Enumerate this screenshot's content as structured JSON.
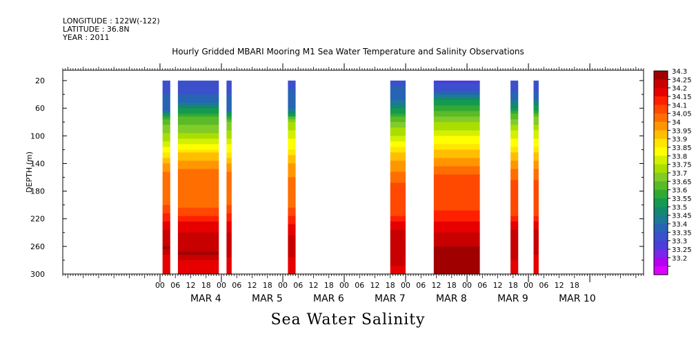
{
  "header": {
    "longitude": "LONGITUDE : 122W(-122)",
    "latitude": "LATITUDE : 36.8N",
    "year": "YEAR : 2011"
  },
  "title": "Hourly Gridded MBARI Mooring M1 Sea Water Temperature and Salinity Observations",
  "xaxis_title": "Sea Water Salinity",
  "chart_data": {
    "type": "heatmap",
    "title": "Hourly Gridded MBARI Mooring M1 Sea Water Temperature and Salinity Observations",
    "xlabel": "",
    "ylabel": "DEPTH (m)",
    "x_unit": "hours since MAR 4 00:00 2011",
    "xlim": [
      -62,
      165
    ],
    "ylim": [
      300,
      5
    ],
    "y_ticks": [
      20,
      60,
      100,
      140,
      180,
      220,
      260,
      300
    ],
    "x_tick_labels": [
      "00",
      "06",
      "12",
      "18",
      "00",
      "06",
      "12",
      "18",
      "00",
      "06",
      "12",
      "18",
      "00",
      "06",
      "12",
      "18",
      "00",
      "06",
      "12",
      "18",
      "00",
      "06",
      "12",
      "18",
      "00",
      "06",
      "12",
      "18"
    ],
    "x_tick_hours": [
      -24,
      -18,
      -12,
      -6,
      0,
      6,
      12,
      18,
      24,
      30,
      36,
      42,
      48,
      54,
      60,
      66,
      72,
      78,
      84,
      90,
      96,
      102,
      108,
      114,
      120,
      126,
      132,
      138
    ],
    "day_labels": [
      {
        "label": "MAR  4",
        "hour": 0
      },
      {
        "label": "MAR  5",
        "hour": 24
      },
      {
        "label": "MAR  6",
        "hour": 48
      },
      {
        "label": "MAR  7",
        "hour": 72
      },
      {
        "label": "MAR  8",
        "hour": 96
      },
      {
        "label": "MAR  9",
        "hour": 120
      },
      {
        "label": "MAR 10",
        "hour": 144
      }
    ],
    "colorbar": {
      "levels": [
        "34.3",
        "34.25",
        "34.2",
        "34.15",
        "34.1",
        "34.05",
        "34",
        "33.95",
        "33.9",
        "33.85",
        "33.8",
        "33.75",
        "33.7",
        "33.65",
        "33.6",
        "33.55",
        "33.5",
        "33.45",
        "33.4",
        "33.35",
        "33.3",
        "33.25",
        "33.2"
      ],
      "colors": [
        "#a00000",
        "#c80000",
        "#e60000",
        "#ff2000",
        "#ff4800",
        "#ff6e00",
        "#ff9600",
        "#ffbe00",
        "#ffe600",
        "#ffff00",
        "#d2f000",
        "#aade00",
        "#82cc28",
        "#5aba28",
        "#32aa32",
        "#149a50",
        "#14886e",
        "#1e7896",
        "#2864b4",
        "#3c50cc",
        "#4b3cdc",
        "#7828e6",
        "#b400f0",
        "#dc00ff"
      ]
    },
    "series": [
      {
        "segments": [
          [
            -23,
            -20
          ]
        ],
        "top_level": 33.38,
        "profile": [
          [
            20,
            33.38
          ],
          [
            60,
            33.42
          ],
          [
            80,
            33.68
          ],
          [
            100,
            33.76
          ],
          [
            120,
            33.86
          ],
          [
            140,
            34.0
          ],
          [
            160,
            34.08
          ],
          [
            200,
            34.1
          ],
          [
            225,
            34.2
          ],
          [
            245,
            34.28
          ],
          [
            262,
            34.3
          ],
          [
            275,
            34.22
          ],
          [
            300,
            34.2
          ]
        ]
      },
      {
        "segments": [
          [
            -17,
            -1
          ]
        ],
        "top_level": 33.35,
        "profile": [
          [
            20,
            33.35
          ],
          [
            50,
            33.42
          ],
          [
            70,
            33.64
          ],
          [
            90,
            33.72
          ],
          [
            110,
            33.84
          ],
          [
            130,
            33.98
          ],
          [
            150,
            34.05
          ],
          [
            200,
            34.08
          ],
          [
            225,
            34.2
          ],
          [
            250,
            34.29
          ],
          [
            270,
            34.3
          ],
          [
            285,
            34.22
          ],
          [
            300,
            34.2
          ]
        ]
      },
      {
        "segments": [
          [
            2,
            4
          ]
        ],
        "top_level": 33.38,
        "profile": [
          [
            20,
            33.38
          ],
          [
            60,
            33.42
          ],
          [
            80,
            33.7
          ],
          [
            100,
            33.78
          ],
          [
            120,
            33.88
          ],
          [
            140,
            34.0
          ],
          [
            160,
            34.08
          ],
          [
            200,
            34.1
          ],
          [
            225,
            34.2
          ],
          [
            250,
            34.28
          ],
          [
            265,
            34.3
          ],
          [
            280,
            34.22
          ],
          [
            300,
            34.2
          ]
        ]
      },
      {
        "segments": [
          [
            26,
            29
          ]
        ],
        "top_level": 33.38,
        "profile": [
          [
            20,
            33.38
          ],
          [
            60,
            33.45
          ],
          [
            80,
            33.74
          ],
          [
            100,
            33.84
          ],
          [
            120,
            33.9
          ],
          [
            140,
            34.0
          ],
          [
            165,
            34.06
          ],
          [
            205,
            34.1
          ],
          [
            230,
            34.2
          ],
          [
            250,
            34.28
          ],
          [
            265,
            34.3
          ],
          [
            280,
            34.22
          ],
          [
            300,
            34.2
          ]
        ]
      },
      {
        "segments": [
          [
            66,
            72
          ]
        ],
        "top_level": 33.38,
        "profile": [
          [
            20,
            33.38
          ],
          [
            50,
            33.45
          ],
          [
            80,
            33.7
          ],
          [
            100,
            33.8
          ],
          [
            120,
            33.92
          ],
          [
            140,
            34.02
          ],
          [
            170,
            34.1
          ],
          [
            215,
            34.15
          ],
          [
            235,
            34.25
          ],
          [
            255,
            34.3
          ],
          [
            275,
            34.28
          ],
          [
            300,
            34.22
          ]
        ]
      },
      {
        "segments": [
          [
            83,
            101
          ]
        ],
        "top_level": 33.32,
        "profile": [
          [
            20,
            33.32
          ],
          [
            35,
            33.4
          ],
          [
            55,
            33.6
          ],
          [
            75,
            33.72
          ],
          [
            95,
            33.82
          ],
          [
            115,
            33.92
          ],
          [
            135,
            34.02
          ],
          [
            155,
            34.1
          ],
          [
            200,
            34.12
          ],
          [
            225,
            34.2
          ],
          [
            245,
            34.27
          ],
          [
            262,
            34.3
          ],
          [
            300,
            34.3
          ]
        ]
      },
      {
        "segments": [
          [
            113,
            116
          ]
        ],
        "top_level": 33.35,
        "profile": [
          [
            20,
            33.35
          ],
          [
            45,
            33.42
          ],
          [
            70,
            33.66
          ],
          [
            95,
            33.82
          ],
          [
            120,
            33.92
          ],
          [
            140,
            34.02
          ],
          [
            165,
            34.1
          ],
          [
            215,
            34.14
          ],
          [
            235,
            34.25
          ],
          [
            255,
            34.3
          ],
          [
            280,
            34.25
          ],
          [
            300,
            34.2
          ]
        ]
      },
      {
        "segments": [
          [
            122,
            124
          ]
        ],
        "top_level": 33.35,
        "profile": [
          [
            20,
            33.35
          ],
          [
            45,
            33.42
          ],
          [
            70,
            33.68
          ],
          [
            100,
            33.84
          ],
          [
            120,
            33.92
          ],
          [
            140,
            34.02
          ],
          [
            165,
            34.1
          ],
          [
            215,
            34.14
          ],
          [
            235,
            34.25
          ],
          [
            255,
            34.3
          ],
          [
            280,
            34.22
          ],
          [
            300,
            34.2
          ]
        ]
      }
    ],
    "grid": false,
    "legend": "colorbar-right"
  }
}
